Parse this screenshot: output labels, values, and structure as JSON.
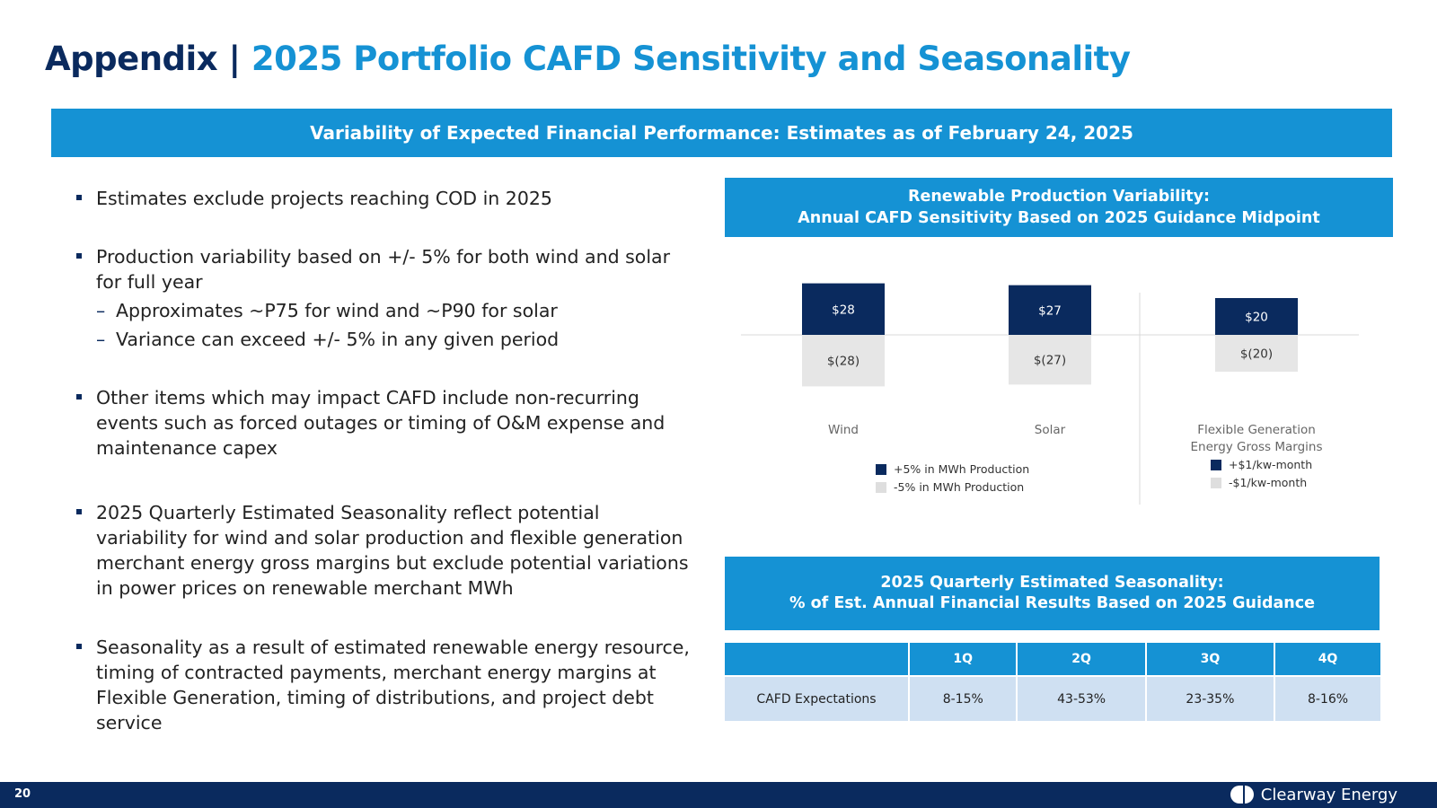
{
  "title": {
    "prefix": "Appendix | ",
    "main": "2025 Portfolio CAFD Sensitivity and Seasonality"
  },
  "banner": "Variability of Expected Financial Performance: Estimates as of February 24, 2025",
  "bullets": [
    "Estimates exclude projects reaching COD in 2025",
    "Production variability based on +/- 5% for both wind and solar for full year",
    "Other items which may impact CAFD include non-recurring events such as forced outages or timing of O&M expense and maintenance capex",
    "2025 Quarterly Estimated Seasonality reflect potential variability for wind and solar production and flexible generation merchant energy gross margins but exclude potential variations in power prices on renewable merchant MWh",
    "Seasonality as a result of estimated renewable energy resource, timing of contracted payments, merchant energy margins at Flexible Generation, timing of distributions, and project debt service"
  ],
  "sub_bullets": [
    "Approximates ~P75 for wind and ~P90 for solar",
    "Variance can exceed +/- 5% in any given period"
  ],
  "chart_header": {
    "line1": "Renewable Production Variability:",
    "line2": "Annual CAFD Sensitivity Based on 2025 Guidance Midpoint"
  },
  "chart_data": {
    "type": "bar",
    "categories": [
      "Wind",
      "Solar",
      "Flexible Generation Energy Gross Margins"
    ],
    "category_lines": [
      [
        "Wind"
      ],
      [
        "Solar"
      ],
      [
        "Flexible Generation",
        "Energy Gross Margins"
      ]
    ],
    "series": [
      {
        "name": "+5% in MWh Production",
        "values": [
          28,
          27,
          null
        ],
        "labels": [
          "$28",
          "$27",
          ""
        ]
      },
      {
        "name": "-5% in MWh Production",
        "values": [
          -28,
          -27,
          null
        ],
        "labels": [
          "$(28)",
          "$(27)",
          ""
        ]
      },
      {
        "name": "+$1/kw-month",
        "values": [
          null,
          null,
          20
        ],
        "labels": [
          "",
          "",
          "$20"
        ]
      },
      {
        "name": "-$1/kw-month",
        "values": [
          null,
          null,
          -20
        ],
        "labels": [
          "",
          "",
          "$(20)"
        ]
      }
    ],
    "colors": {
      "positive": "#0a2a5e",
      "negative": "#e6e6e6"
    },
    "ylim": [
      -30,
      30
    ],
    "legend_groups": [
      {
        "placement": "below-wind-solar",
        "entries": [
          "+5% in MWh Production",
          "-5% in MWh Production"
        ]
      },
      {
        "placement": "below-flexible-generation",
        "entries": [
          "+$1/kw-month",
          "-$1/kw-month"
        ]
      }
    ]
  },
  "seasonality_header": {
    "line1": "2025 Quarterly Estimated Seasonality:",
    "line2": "% of Est. Annual Financial Results Based on 2025 Guidance"
  },
  "seasonality_table": {
    "headers": [
      "",
      "1Q",
      "2Q",
      "3Q",
      "4Q"
    ],
    "row": [
      "CAFD Expectations",
      "8-15%",
      "43-53%",
      "23-35%",
      "8-16%"
    ]
  },
  "footer": {
    "page_number": "20",
    "brand": "Clearway Energy"
  }
}
